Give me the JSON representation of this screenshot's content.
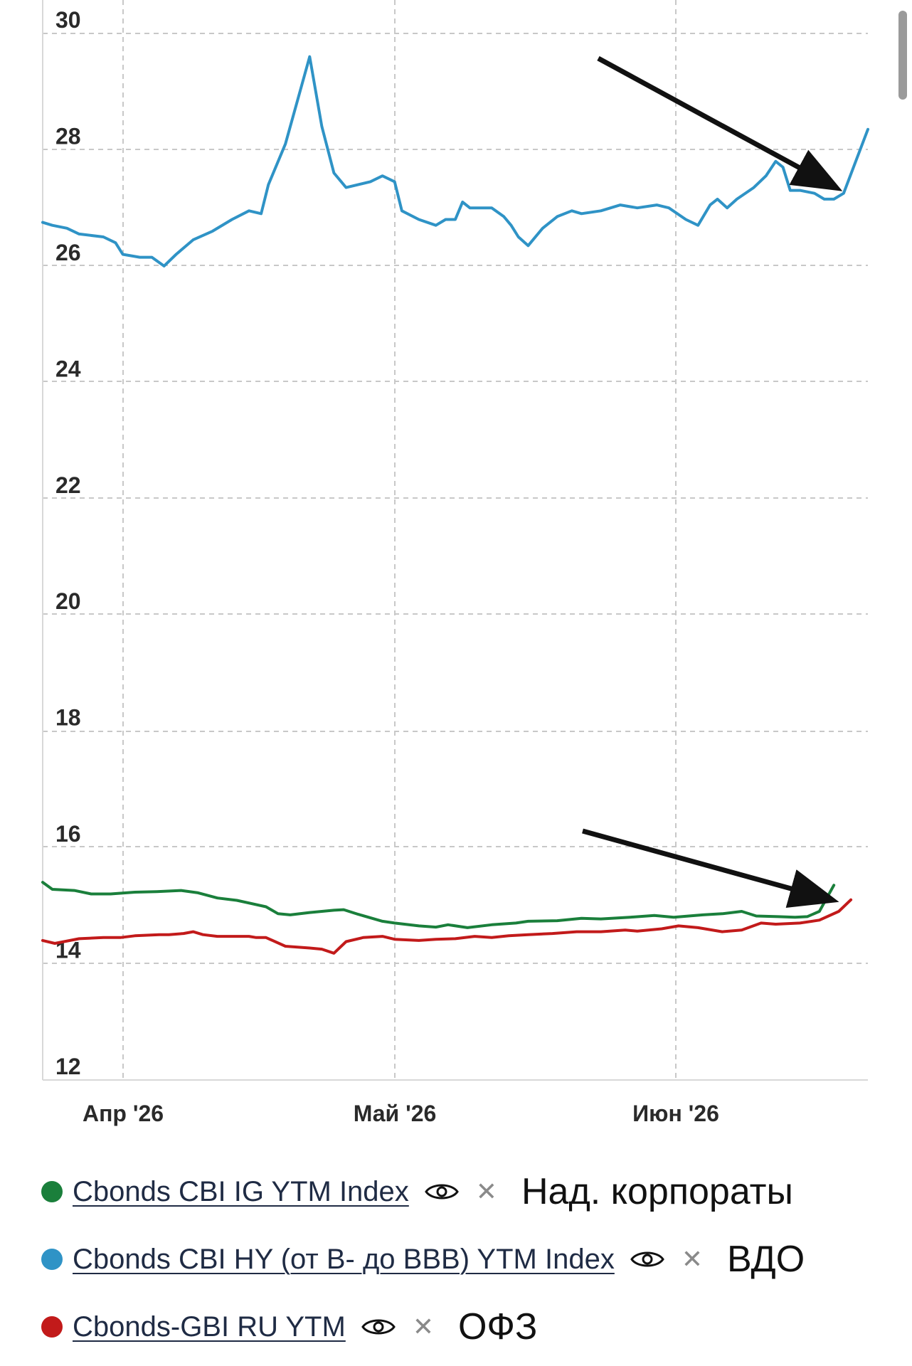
{
  "chart_data": {
    "type": "line",
    "title": "",
    "xlabel": "",
    "ylabel": "",
    "ylim": [
      12,
      30
    ],
    "yticks": [
      "12",
      "14",
      "16",
      "18",
      "20",
      "22",
      "24",
      "26",
      "28",
      "30"
    ],
    "xticks": [
      "Апр '26",
      "Май '26",
      "Июн '26"
    ],
    "grid": true,
    "legend_position": "bottom",
    "series": [
      {
        "name": "Cbonds CBI IG YTM Index",
        "color": "#1a7f3b",
        "note": "Над. корпораты",
        "values": [
          [
            0.0,
            15.4
          ],
          [
            0.04,
            15.28
          ],
          [
            0.13,
            15.26
          ],
          [
            0.2,
            15.2
          ],
          [
            0.28,
            15.2
          ],
          [
            0.38,
            15.23
          ],
          [
            0.47,
            15.24
          ],
          [
            0.57,
            15.26
          ],
          [
            0.64,
            15.22
          ],
          [
            0.72,
            15.13
          ],
          [
            0.8,
            15.09
          ],
          [
            0.92,
            14.98
          ],
          [
            0.97,
            14.86
          ],
          [
            1.02,
            14.84
          ],
          [
            1.1,
            14.88
          ],
          [
            1.2,
            14.92
          ],
          [
            1.24,
            14.93
          ],
          [
            1.3,
            14.85
          ],
          [
            1.4,
            14.73
          ],
          [
            1.45,
            14.7
          ],
          [
            1.55,
            14.65
          ],
          [
            1.62,
            14.63
          ],
          [
            1.67,
            14.67
          ],
          [
            1.75,
            14.62
          ],
          [
            1.85,
            14.67
          ],
          [
            1.95,
            14.7
          ],
          [
            2.0,
            14.73
          ],
          [
            2.12,
            14.74
          ],
          [
            2.22,
            14.78
          ],
          [
            2.3,
            14.77
          ],
          [
            2.42,
            14.8
          ],
          [
            2.52,
            14.83
          ],
          [
            2.6,
            14.8
          ],
          [
            2.72,
            14.84
          ],
          [
            2.8,
            14.86
          ],
          [
            2.88,
            14.9
          ],
          [
            2.94,
            14.82
          ],
          [
            3.03,
            14.81
          ],
          [
            3.1,
            14.8
          ],
          [
            3.15,
            14.81
          ],
          [
            3.2,
            14.9
          ],
          [
            3.26,
            15.35
          ]
        ]
      },
      {
        "name": "Cbonds CBI HY (от B- до BBB) YTM Index",
        "color": "#2f93c6",
        "note": "ВДО",
        "values": [
          [
            0.0,
            26.75
          ],
          [
            0.04,
            26.7
          ],
          [
            0.1,
            26.65
          ],
          [
            0.15,
            26.55
          ],
          [
            0.25,
            26.5
          ],
          [
            0.3,
            26.4
          ],
          [
            0.33,
            26.2
          ],
          [
            0.4,
            26.15
          ],
          [
            0.45,
            26.15
          ],
          [
            0.5,
            26.0
          ],
          [
            0.55,
            26.2
          ],
          [
            0.62,
            26.45
          ],
          [
            0.7,
            26.6
          ],
          [
            0.78,
            26.8
          ],
          [
            0.85,
            26.95
          ],
          [
            0.9,
            26.9
          ],
          [
            0.93,
            27.4
          ],
          [
            1.0,
            28.1
          ],
          [
            1.1,
            29.6
          ],
          [
            1.15,
            28.4
          ],
          [
            1.2,
            27.6
          ],
          [
            1.25,
            27.35
          ],
          [
            1.35,
            27.45
          ],
          [
            1.4,
            27.55
          ],
          [
            1.45,
            27.45
          ],
          [
            1.48,
            26.95
          ],
          [
            1.55,
            26.8
          ],
          [
            1.62,
            26.7
          ],
          [
            1.66,
            26.8
          ],
          [
            1.7,
            26.8
          ],
          [
            1.73,
            27.1
          ],
          [
            1.76,
            27.0
          ],
          [
            1.85,
            27.0
          ],
          [
            1.9,
            26.85
          ],
          [
            1.93,
            26.7
          ],
          [
            1.96,
            26.5
          ],
          [
            2.0,
            26.35
          ],
          [
            2.06,
            26.65
          ],
          [
            2.12,
            26.85
          ],
          [
            2.18,
            26.95
          ],
          [
            2.22,
            26.9
          ],
          [
            2.3,
            26.95
          ],
          [
            2.38,
            27.05
          ],
          [
            2.45,
            27.0
          ],
          [
            2.53,
            27.05
          ],
          [
            2.58,
            27.0
          ],
          [
            2.65,
            26.8
          ],
          [
            2.7,
            26.7
          ],
          [
            2.75,
            27.05
          ],
          [
            2.78,
            27.15
          ],
          [
            2.82,
            27.0
          ],
          [
            2.86,
            27.15
          ],
          [
            2.93,
            27.35
          ],
          [
            2.98,
            27.55
          ],
          [
            3.02,
            27.8
          ],
          [
            3.05,
            27.7
          ],
          [
            3.08,
            27.3
          ],
          [
            3.12,
            27.3
          ],
          [
            3.18,
            27.25
          ],
          [
            3.22,
            27.15
          ],
          [
            3.26,
            27.15
          ],
          [
            3.3,
            27.25
          ],
          [
            3.35,
            27.8
          ],
          [
            3.4,
            28.35
          ]
        ]
      },
      {
        "name": "Cbonds-GBI RU YTM",
        "color": "#c21a1a",
        "note": "ОФЗ",
        "values": [
          [
            0.0,
            14.4
          ],
          [
            0.05,
            14.35
          ],
          [
            0.15,
            14.43
          ],
          [
            0.25,
            14.45
          ],
          [
            0.32,
            14.45
          ],
          [
            0.38,
            14.48
          ],
          [
            0.48,
            14.5
          ],
          [
            0.52,
            14.5
          ],
          [
            0.58,
            14.52
          ],
          [
            0.62,
            14.55
          ],
          [
            0.66,
            14.5
          ],
          [
            0.72,
            14.47
          ],
          [
            0.78,
            14.47
          ],
          [
            0.85,
            14.47
          ],
          [
            0.88,
            14.45
          ],
          [
            0.92,
            14.45
          ],
          [
            1.0,
            14.3
          ],
          [
            1.1,
            14.27
          ],
          [
            1.15,
            14.25
          ],
          [
            1.2,
            14.18
          ],
          [
            1.25,
            14.38
          ],
          [
            1.32,
            14.45
          ],
          [
            1.4,
            14.47
          ],
          [
            1.45,
            14.42
          ],
          [
            1.55,
            14.4
          ],
          [
            1.62,
            14.42
          ],
          [
            1.7,
            14.43
          ],
          [
            1.78,
            14.47
          ],
          [
            1.85,
            14.45
          ],
          [
            1.92,
            14.48
          ],
          [
            2.0,
            14.5
          ],
          [
            2.1,
            14.52
          ],
          [
            2.2,
            14.55
          ],
          [
            2.3,
            14.55
          ],
          [
            2.4,
            14.58
          ],
          [
            2.45,
            14.56
          ],
          [
            2.55,
            14.6
          ],
          [
            2.62,
            14.65
          ],
          [
            2.7,
            14.62
          ],
          [
            2.8,
            14.55
          ],
          [
            2.88,
            14.58
          ],
          [
            2.96,
            14.7
          ],
          [
            3.02,
            14.68
          ],
          [
            3.12,
            14.7
          ],
          [
            3.2,
            14.75
          ],
          [
            3.28,
            14.9
          ],
          [
            3.33,
            15.1
          ]
        ]
      }
    ],
    "annotations": [
      {
        "type": "arrow",
        "color": "#111111"
      },
      {
        "type": "arrow",
        "color": "#111111"
      }
    ]
  }
}
